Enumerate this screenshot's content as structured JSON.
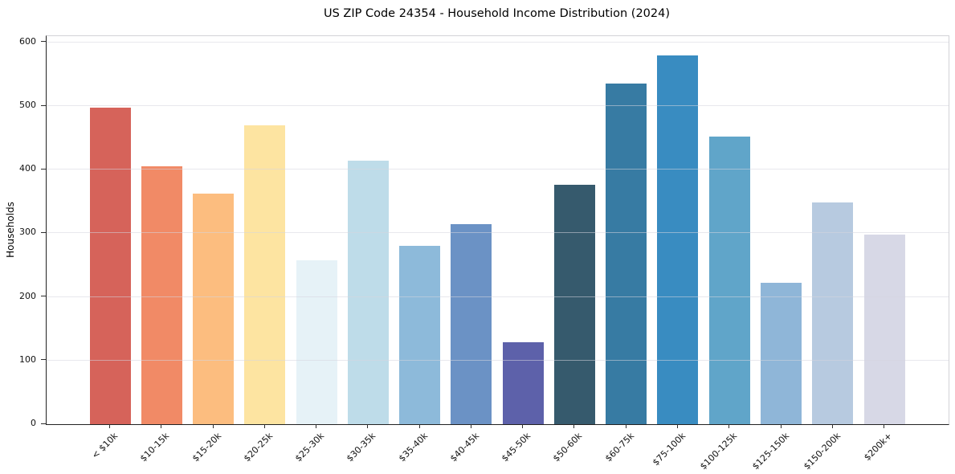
{
  "chart_data": {
    "type": "bar",
    "title": "US ZIP Code 24354 - Household Income Distribution (2024)",
    "ylabel": "Households",
    "xlabel": "",
    "categories": [
      "< $10k",
      "$10-15k",
      "$15-20k",
      "$20-25k",
      "$25-30k",
      "$30-35k",
      "$35-40k",
      "$40-45k",
      "$45-50k",
      "$50-60k",
      "$60-75k",
      "$75-100k",
      "$100-125k",
      "$125-150k",
      "$150-200k",
      "$200k+"
    ],
    "values": [
      498,
      406,
      363,
      470,
      258,
      414,
      280,
      314,
      129,
      376,
      535,
      580,
      452,
      222,
      349,
      298
    ],
    "bar_colors": [
      "#d6635a",
      "#f18a66",
      "#fcbd7f",
      "#fde4a1",
      "#e6f2f7",
      "#bedce9",
      "#8dbada",
      "#6b92c5",
      "#5d61aa",
      "#365a6d",
      "#377ba3",
      "#398cc1",
      "#60a5c9",
      "#8fb6d8",
      "#b7cae0",
      "#d7d8e6"
    ],
    "ylim": [
      0,
      600
    ],
    "yticks": [
      0,
      100,
      200,
      300,
      400,
      500,
      600
    ],
    "grid": "horizontal-only",
    "legend": "none"
  },
  "style": {
    "background": "#ffffff",
    "spine_color": "#222222",
    "spine_light": "#d2d2d7",
    "grid_color": "#d6d6de",
    "text_color": "#000000"
  }
}
